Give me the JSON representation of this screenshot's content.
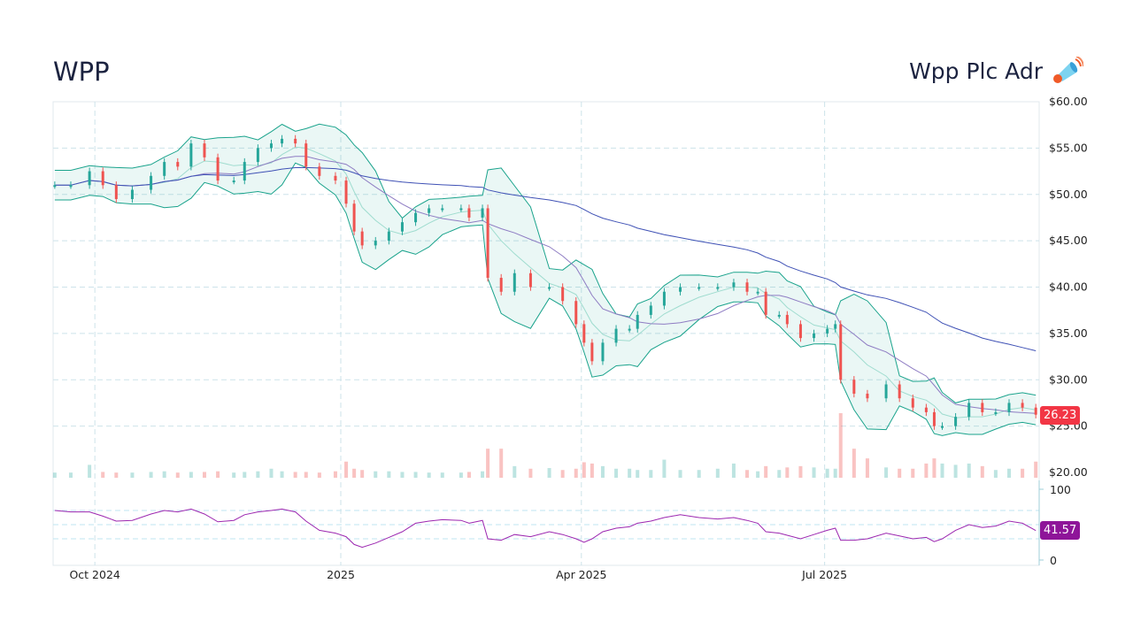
{
  "header": {
    "ticker": "WPP",
    "company": "Wpp Plc Adr",
    "icon": "megaphone-icon"
  },
  "chart_data": {
    "type": "candlestick",
    "price_axis": {
      "ticks": [
        "$60.00",
        "$55.00",
        "$50.00",
        "$45.00",
        "$40.00",
        "$35.00",
        "$30.00",
        "$25.00",
        "$20.00"
      ],
      "range": [
        20,
        60
      ]
    },
    "rsi_axis": {
      "ticks": [
        "100",
        "0"
      ],
      "range": [
        0,
        100
      ]
    },
    "x_ticks": [
      {
        "label": "Oct 2024",
        "date": "2024-10-01"
      },
      {
        "label": "2025",
        "date": "2025-01-01"
      },
      {
        "label": "Apr 2025",
        "date": "2025-04-01"
      },
      {
        "label": "Jul 2025",
        "date": "2025-07-01"
      }
    ],
    "last_price_label": "26.23",
    "last_rsi_label": "41.57",
    "colors": {
      "up": "#26a69a",
      "down": "#ef5350",
      "band": "#1aa38c",
      "ma_short": "#8e7cc3",
      "ma_long": "#3f51b5",
      "rsi": "#9c27b0",
      "price_badge": "#f23645",
      "rsi_badge": "#8e1599"
    },
    "dates": [
      "2024-09-16",
      "2024-09-22",
      "2024-09-29",
      "2024-10-04",
      "2024-10-09",
      "2024-10-15",
      "2024-10-22",
      "2024-10-27",
      "2024-11-01",
      "2024-11-06",
      "2024-11-11",
      "2024-11-16",
      "2024-11-22",
      "2024-11-26",
      "2024-12-01",
      "2024-12-06",
      "2024-12-10",
      "2024-12-15",
      "2024-12-19",
      "2024-12-24",
      "2024-12-30",
      "2025-01-03",
      "2025-01-06",
      "2025-01-09",
      "2025-01-14",
      "2025-01-19",
      "2025-01-24",
      "2025-01-29",
      "2025-02-03",
      "2025-02-08",
      "2025-02-15",
      "2025-02-18",
      "2025-02-23",
      "2025-02-25",
      "2025-03-02",
      "2025-03-07",
      "2025-03-13",
      "2025-03-20",
      "2025-03-25",
      "2025-03-30",
      "2025-04-02",
      "2025-04-05",
      "2025-04-09",
      "2025-04-14",
      "2025-04-19",
      "2025-04-22",
      "2025-04-27",
      "2025-05-02",
      "2025-05-08",
      "2025-05-15",
      "2025-05-22",
      "2025-05-28",
      "2025-06-02",
      "2025-06-06",
      "2025-06-09",
      "2025-06-14",
      "2025-06-17",
      "2025-06-22",
      "2025-06-27",
      "2025-07-02",
      "2025-07-05",
      "2025-07-07",
      "2025-07-12",
      "2025-07-17",
      "2025-07-24",
      "2025-07-29",
      "2025-08-03",
      "2025-08-08",
      "2025-08-11",
      "2025-08-14",
      "2025-08-19",
      "2025-08-24",
      "2025-08-29",
      "2025-09-03",
      "2025-09-08",
      "2025-09-13",
      "2025-09-18"
    ],
    "close": [
      51,
      51,
      52.5,
      51,
      49.5,
      50.5,
      52,
      53.5,
      53,
      55.5,
      54,
      51.5,
      51.5,
      53.5,
      55,
      55.5,
      56,
      55.5,
      53,
      52,
      51.5,
      49,
      46,
      44.5,
      45,
      46,
      47,
      48,
      48.5,
      48.5,
      48.5,
      47.5,
      48.5,
      41,
      39.5,
      41.5,
      40,
      40,
      38.5,
      36,
      34,
      32,
      34,
      35.5,
      35.5,
      37,
      38,
      39.5,
      40,
      40,
      40,
      40.5,
      39.5,
      39.5,
      37,
      37,
      36,
      34.5,
      35,
      35.5,
      36,
      30,
      28.5,
      28,
      29.5,
      28,
      27,
      26.5,
      25,
      25,
      26,
      27.5,
      26.5,
      26.5,
      27.5,
      27,
      26.23
    ],
    "volume_relative": [
      8,
      8,
      20,
      9,
      8,
      8,
      9,
      10,
      8,
      9,
      9,
      10,
      8,
      9,
      10,
      14,
      10,
      9,
      9,
      8,
      10,
      25,
      14,
      12,
      10,
      10,
      9,
      9,
      8,
      8,
      8,
      9,
      10,
      45,
      45,
      18,
      14,
      15,
      12,
      14,
      24,
      22,
      18,
      14,
      14,
      12,
      12,
      28,
      12,
      12,
      14,
      22,
      12,
      10,
      18,
      12,
      16,
      18,
      16,
      14,
      14,
      100,
      45,
      30,
      16,
      14,
      14,
      22,
      30,
      22,
      20,
      22,
      18,
      12,
      14,
      14,
      25
    ],
    "rsi": [
      70,
      68,
      68,
      62,
      55,
      56,
      65,
      70,
      68,
      72,
      65,
      54,
      56,
      64,
      68,
      70,
      72,
      68,
      55,
      42,
      38,
      33,
      22,
      18,
      24,
      32,
      40,
      52,
      55,
      57,
      56,
      52,
      56,
      30,
      28,
      36,
      33,
      40,
      36,
      30,
      25,
      30,
      40,
      45,
      47,
      52,
      55,
      60,
      64,
      60,
      58,
      60,
      56,
      52,
      40,
      38,
      35,
      30,
      36,
      42,
      45,
      28,
      28,
      30,
      38,
      34,
      30,
      32,
      26,
      30,
      42,
      50,
      46,
      48,
      55,
      52,
      41.57
    ]
  }
}
